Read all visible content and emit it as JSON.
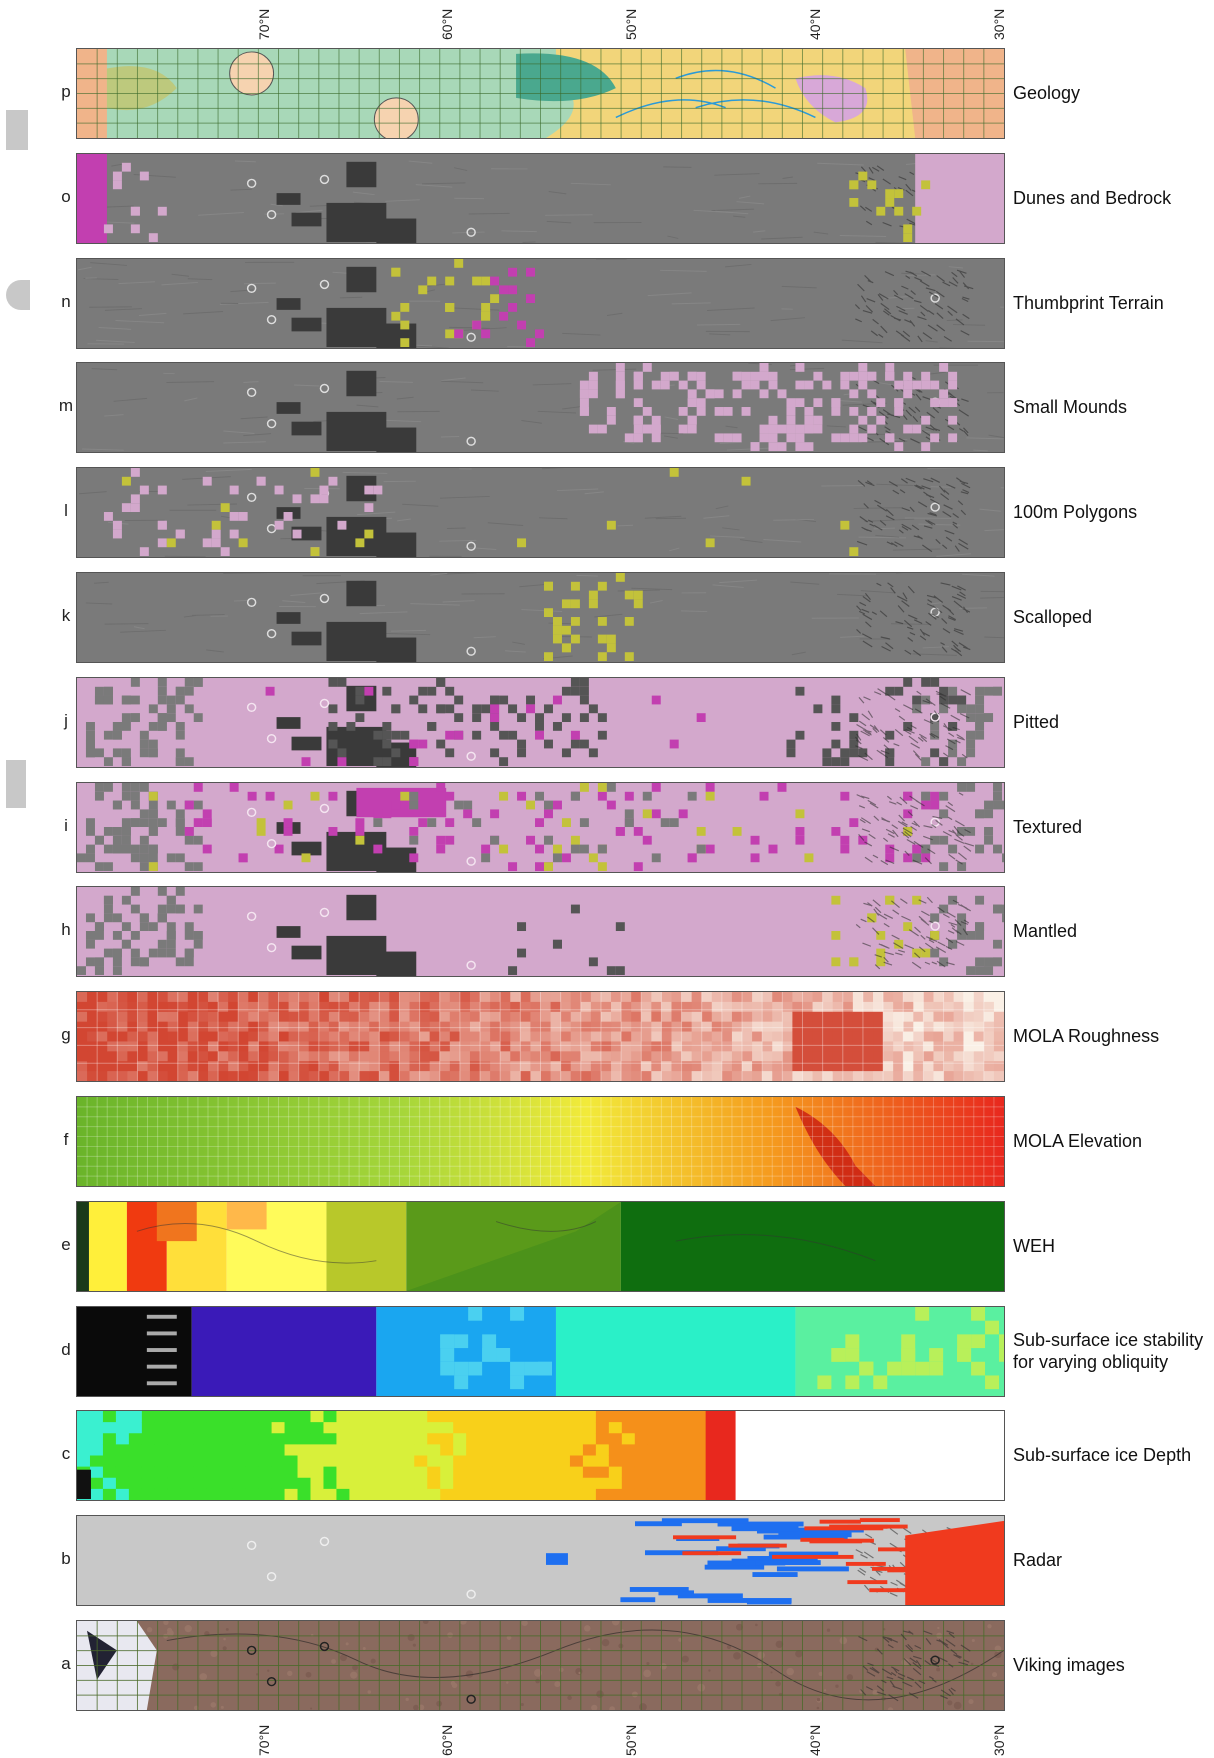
{
  "axis": {
    "top_ticks": [
      "70°N",
      "60°N",
      "50°N",
      "40°N",
      "30°N"
    ],
    "bottom_ticks": [
      "70°N",
      "60°N",
      "50°N",
      "40°N",
      "30°N"
    ]
  },
  "panels": [
    {
      "letter": "p",
      "name": "Geology",
      "style": "geology"
    },
    {
      "letter": "o",
      "name": "Dunes and Bedrock",
      "style": "relief",
      "accent": "#c23fb0",
      "overlay": "#d3a8cc"
    },
    {
      "letter": "n",
      "name": "Thumbprint Terrain",
      "style": "relief",
      "accent": "#c23fb0",
      "overlay": "#c3c23a"
    },
    {
      "letter": "m",
      "name": "Small Mounds",
      "style": "relief",
      "accent": "#d3a8cc",
      "overlay": "#3a3a3a"
    },
    {
      "letter": "l",
      "name": "100m Polygons",
      "style": "relief",
      "accent": "#c3c23a",
      "overlay": "#d3a8cc"
    },
    {
      "letter": "k",
      "name": "Scalloped",
      "style": "relief",
      "accent": "#c3c23a",
      "overlay": "#3a3a3a"
    },
    {
      "letter": "j",
      "name": "Pitted",
      "style": "mantle",
      "accent": "#c23fb0",
      "overlay": "#555555"
    },
    {
      "letter": "i",
      "name": "Textured",
      "style": "mantle",
      "accent": "#c23fb0",
      "overlay": "#c3c23a"
    },
    {
      "letter": "h",
      "name": "Mantled",
      "style": "mantle",
      "accent": "#c3c23a",
      "overlay": "#3a3a3a"
    },
    {
      "letter": "g",
      "name": "MOLA Roughness",
      "style": "roughness"
    },
    {
      "letter": "f",
      "name": "MOLA Elevation",
      "style": "elevation"
    },
    {
      "letter": "e",
      "name": "WEH",
      "style": "weh"
    },
    {
      "letter": "d",
      "name": "Sub-surface ice stability\nfor varying obliquity",
      "style": "stability"
    },
    {
      "letter": "c",
      "name": "Sub-surface ice Depth",
      "style": "depth"
    },
    {
      "letter": "b",
      "name": "Radar",
      "style": "radar"
    },
    {
      "letter": "a",
      "name": "Viking images",
      "style": "viking"
    }
  ],
  "colors": {
    "relief_gray": "#7a7a7a",
    "mantle_pink": "#d3a8cc",
    "geology_green": "#a8d8b8",
    "geology_yellow": "#f2d57a",
    "radar_blue": "#1e6ff0",
    "radar_red": "#f03a1e",
    "weh_dark_green": "#0f6e0f"
  }
}
